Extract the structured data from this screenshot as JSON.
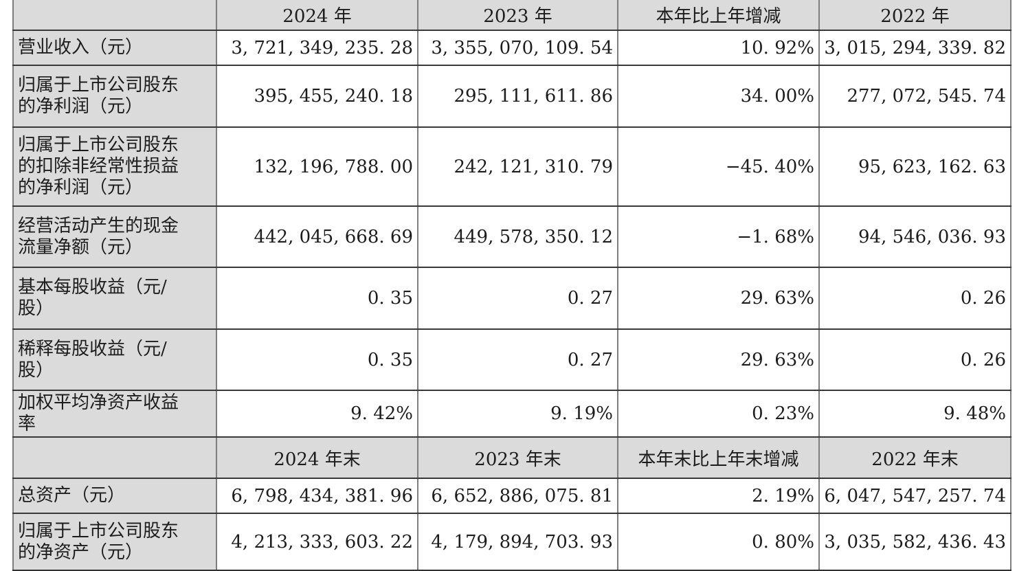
{
  "document": {
    "type": "annual-report-key-financials-table",
    "colors": {
      "header_and_label_bg": "#dbdbdb",
      "cell_bg": "#ffffff",
      "vertical_border": "#7e7e7e",
      "horizontal_border": "#383838",
      "text": "#1c1c1c"
    }
  },
  "table": {
    "rows": [
      {
        "kind": "header",
        "cells": [
          "",
          "2024 年",
          "2023 年",
          "本年比上年增减",
          "2022 年"
        ]
      },
      {
        "kind": "data",
        "cells": [
          "营业收入（元）",
          "3, 721, 349, 235. 28",
          "3, 355, 070, 109. 54",
          "10. 92%",
          "3, 015, 294, 339. 82"
        ]
      },
      {
        "kind": "data",
        "cells": [
          "归属于上市公司股东\n的净利润（元）",
          "395, 455, 240. 18",
          "295, 111, 611. 86",
          "34. 00%",
          "277, 072, 545. 74"
        ]
      },
      {
        "kind": "data",
        "cells": [
          "归属于上市公司股东\n的扣除非经常性损益\n的净利润（元）",
          "132, 196, 788. 00",
          "242, 121, 310. 79",
          "−45. 40%",
          "95, 623, 162. 63"
        ]
      },
      {
        "kind": "data",
        "cells": [
          "经营活动产生的现金\n流量净额（元）",
          "442, 045, 668. 69",
          "449, 578, 350. 12",
          "−1. 68%",
          "94, 546, 036. 93"
        ]
      },
      {
        "kind": "data",
        "cells": [
          "基本每股收益（元/\n股）",
          "0. 35",
          "0. 27",
          "29. 63%",
          "0. 26"
        ]
      },
      {
        "kind": "data",
        "cells": [
          "稀释每股收益（元/\n股）",
          "0. 35",
          "0. 27",
          "29. 63%",
          "0. 26"
        ]
      },
      {
        "kind": "data",
        "cells": [
          "加权平均净资产收益\n率",
          "9. 42%",
          "9. 19%",
          "0. 23%",
          "9. 48%"
        ]
      },
      {
        "kind": "header",
        "cells": [
          "",
          "2024 年末",
          "2023 年末",
          "本年末比上年末增减",
          "2022 年末"
        ]
      },
      {
        "kind": "data",
        "cells": [
          "总资产（元）",
          "6, 798, 434, 381. 96",
          "6, 652, 886, 075. 81",
          "2. 19%",
          "6, 047, 547, 257. 74"
        ]
      },
      {
        "kind": "data",
        "cells": [
          "归属于上市公司股东\n的净资产（元）",
          "4, 213, 333, 603. 22",
          "4, 179, 894, 703. 93",
          "0. 80%",
          "3, 035, 582, 436. 43"
        ]
      }
    ]
  }
}
